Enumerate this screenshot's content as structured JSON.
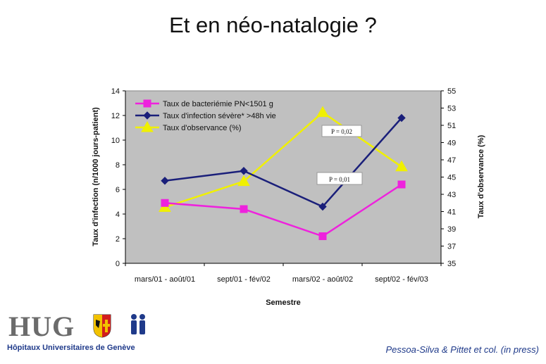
{
  "slide": {
    "title": "Et en néo-natalogie ?",
    "citation": "Pessoa-Silva & Pittet et col.  (in press)"
  },
  "logo": {
    "name": "HUG",
    "subtitle": "Hôpitaux Universitaires de Genève"
  },
  "chart_data": {
    "type": "line",
    "categories": [
      "mars/01 - août/01",
      "sept/01 - fév/02",
      "mars/02 - août/02",
      "sept/02 - fév/03"
    ],
    "xlabel": "Semestre",
    "ylabel_left": "Taux d'infection (n/1000 jours-patient)",
    "ylabel_right": "Taux d'observance (%)",
    "ylim_left": [
      0,
      14
    ],
    "yticks_left": [
      0,
      2,
      4,
      6,
      8,
      10,
      12,
      14
    ],
    "ylim_right": [
      35,
      55
    ],
    "yticks_right": [
      35,
      37,
      39,
      41,
      43,
      45,
      47,
      49,
      51,
      53,
      55
    ],
    "legend_position": "top-left",
    "plot_background": "#c0c0c0",
    "series": [
      {
        "name": "Taux de bacteriémie PN<1501 g",
        "axis": "left",
        "color": "#ee22dd",
        "marker": "square",
        "values": [
          4.9,
          4.4,
          2.2,
          6.4
        ]
      },
      {
        "name": "Taux  d'infection sévère* >48h vie",
        "axis": "left",
        "color": "#1a1f7a",
        "marker": "diamond",
        "values": [
          6.7,
          7.5,
          4.6,
          11.8
        ]
      },
      {
        "name": "Taux d'observance (%)",
        "axis": "right",
        "color": "#f0f000",
        "marker": "triangle",
        "values": [
          41.5,
          44.5,
          52.5,
          46.2
        ]
      }
    ],
    "annotations": [
      {
        "text": "P = 0,02"
      },
      {
        "text": "P = 0,01"
      }
    ]
  }
}
